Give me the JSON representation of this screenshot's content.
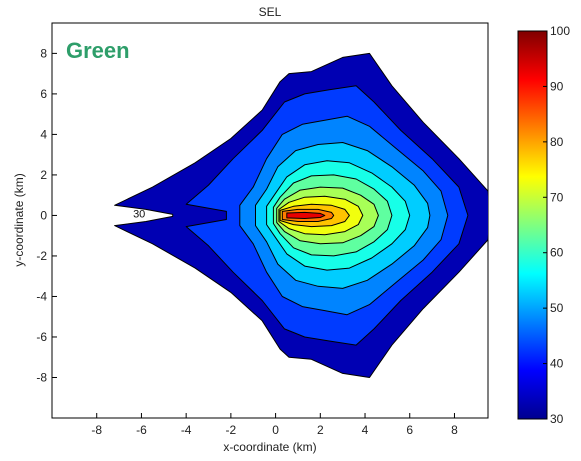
{
  "chart_data": {
    "type": "contourf",
    "title": "SEL",
    "xlabel": "x-coordinate (km)",
    "ylabel": "y-coordinate (km)",
    "xlim": [
      -10,
      9.5
    ],
    "ylim": [
      -10,
      9.5
    ],
    "x_ticks": [
      -8,
      -6,
      -4,
      -2,
      0,
      2,
      4,
      6,
      8
    ],
    "y_ticks": [
      -8,
      -6,
      -4,
      -2,
      0,
      2,
      4,
      6,
      8
    ],
    "annotation": {
      "text": "Green",
      "color": "#2e9e6a"
    },
    "colorbar": {
      "min": 30,
      "max": 100,
      "ticks": [
        30,
        40,
        50,
        60,
        70,
        80,
        90,
        100
      ],
      "colormap": "jet"
    },
    "contour_levels": [
      30,
      40,
      45,
      50,
      55,
      60,
      65,
      70,
      75,
      80,
      90
    ],
    "contour_labels": [
      {
        "text": "30",
        "x": -6.1,
        "y": 0.1
      }
    ],
    "peak": {
      "x": 1.8,
      "y": 0.0,
      "value": 95
    }
  }
}
